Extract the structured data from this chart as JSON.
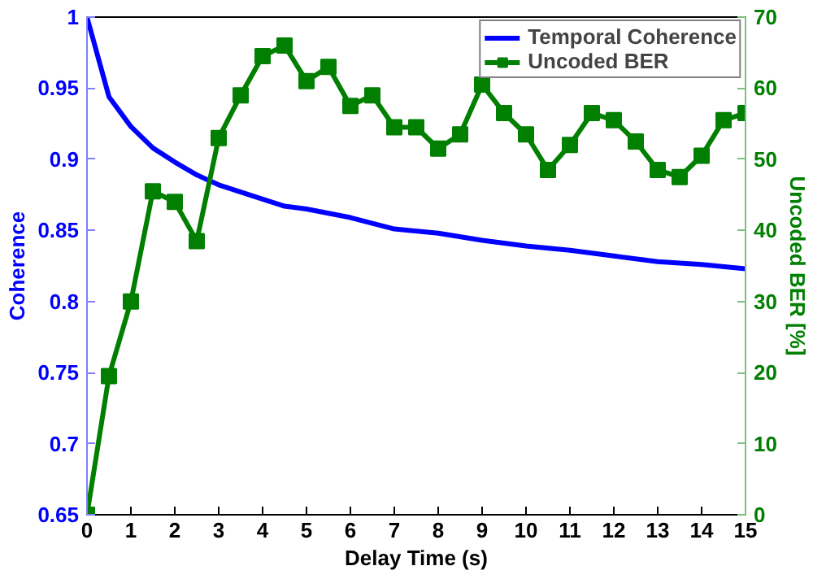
{
  "chart_data": {
    "type": "line",
    "xlabel": "Delay Time (s)",
    "ylabel": "Coherence",
    "y2label": "Uncoded BER [%]",
    "xlim": [
      0,
      15
    ],
    "xticks": [
      0,
      1,
      2,
      3,
      4,
      5,
      6,
      7,
      8,
      9,
      10,
      11,
      12,
      13,
      14,
      15
    ],
    "ylim": [
      0.65,
      1
    ],
    "yticks": [
      0.65,
      0.7,
      0.75,
      0.8,
      0.85,
      0.9,
      0.95,
      1
    ],
    "y2lim": [
      0,
      70
    ],
    "y2ticks": [
      0,
      10,
      20,
      30,
      40,
      50,
      60,
      70
    ],
    "grid": false,
    "legend": "top right",
    "series": [
      {
        "name": "Temporal Coherence",
        "color": "#0000ff",
        "marker": "none",
        "x": [
          0,
          0.5,
          1,
          1.5,
          2,
          2.5,
          3,
          3.5,
          4,
          4.5,
          5,
          6,
          7,
          8,
          9,
          10,
          11,
          12,
          13,
          14,
          15
        ],
        "values": [
          1,
          0.944,
          0.923,
          0.908,
          0.898,
          0.889,
          0.882,
          0.877,
          0.872,
          0.867,
          0.865,
          0.859,
          0.851,
          0.848,
          0.843,
          0.839,
          0.836,
          0.832,
          0.828,
          0.826,
          0.823
        ]
      },
      {
        "name": "Uncoded BER",
        "color": "#007f00",
        "marker": "square",
        "axis": "y2",
        "x": [
          0,
          0.5,
          1,
          1.5,
          2,
          2.5,
          3,
          3.5,
          4,
          4.5,
          5,
          5.5,
          6,
          6.5,
          7,
          7.5,
          8,
          8.5,
          9,
          9.5,
          10,
          10.5,
          11,
          11.5,
          12,
          12.5,
          13,
          13.5,
          14,
          14.5,
          15
        ],
        "values": [
          0,
          19.5,
          30,
          45.5,
          44,
          38.5,
          53,
          59,
          64.5,
          66,
          61,
          63,
          57.5,
          59,
          54.5,
          54.5,
          51.5,
          53.5,
          60.5,
          56.5,
          53.5,
          48.5,
          52,
          56.5,
          55.5,
          52.5,
          48.5,
          47.5,
          50.5,
          55.5,
          56.5
        ]
      }
    ]
  }
}
